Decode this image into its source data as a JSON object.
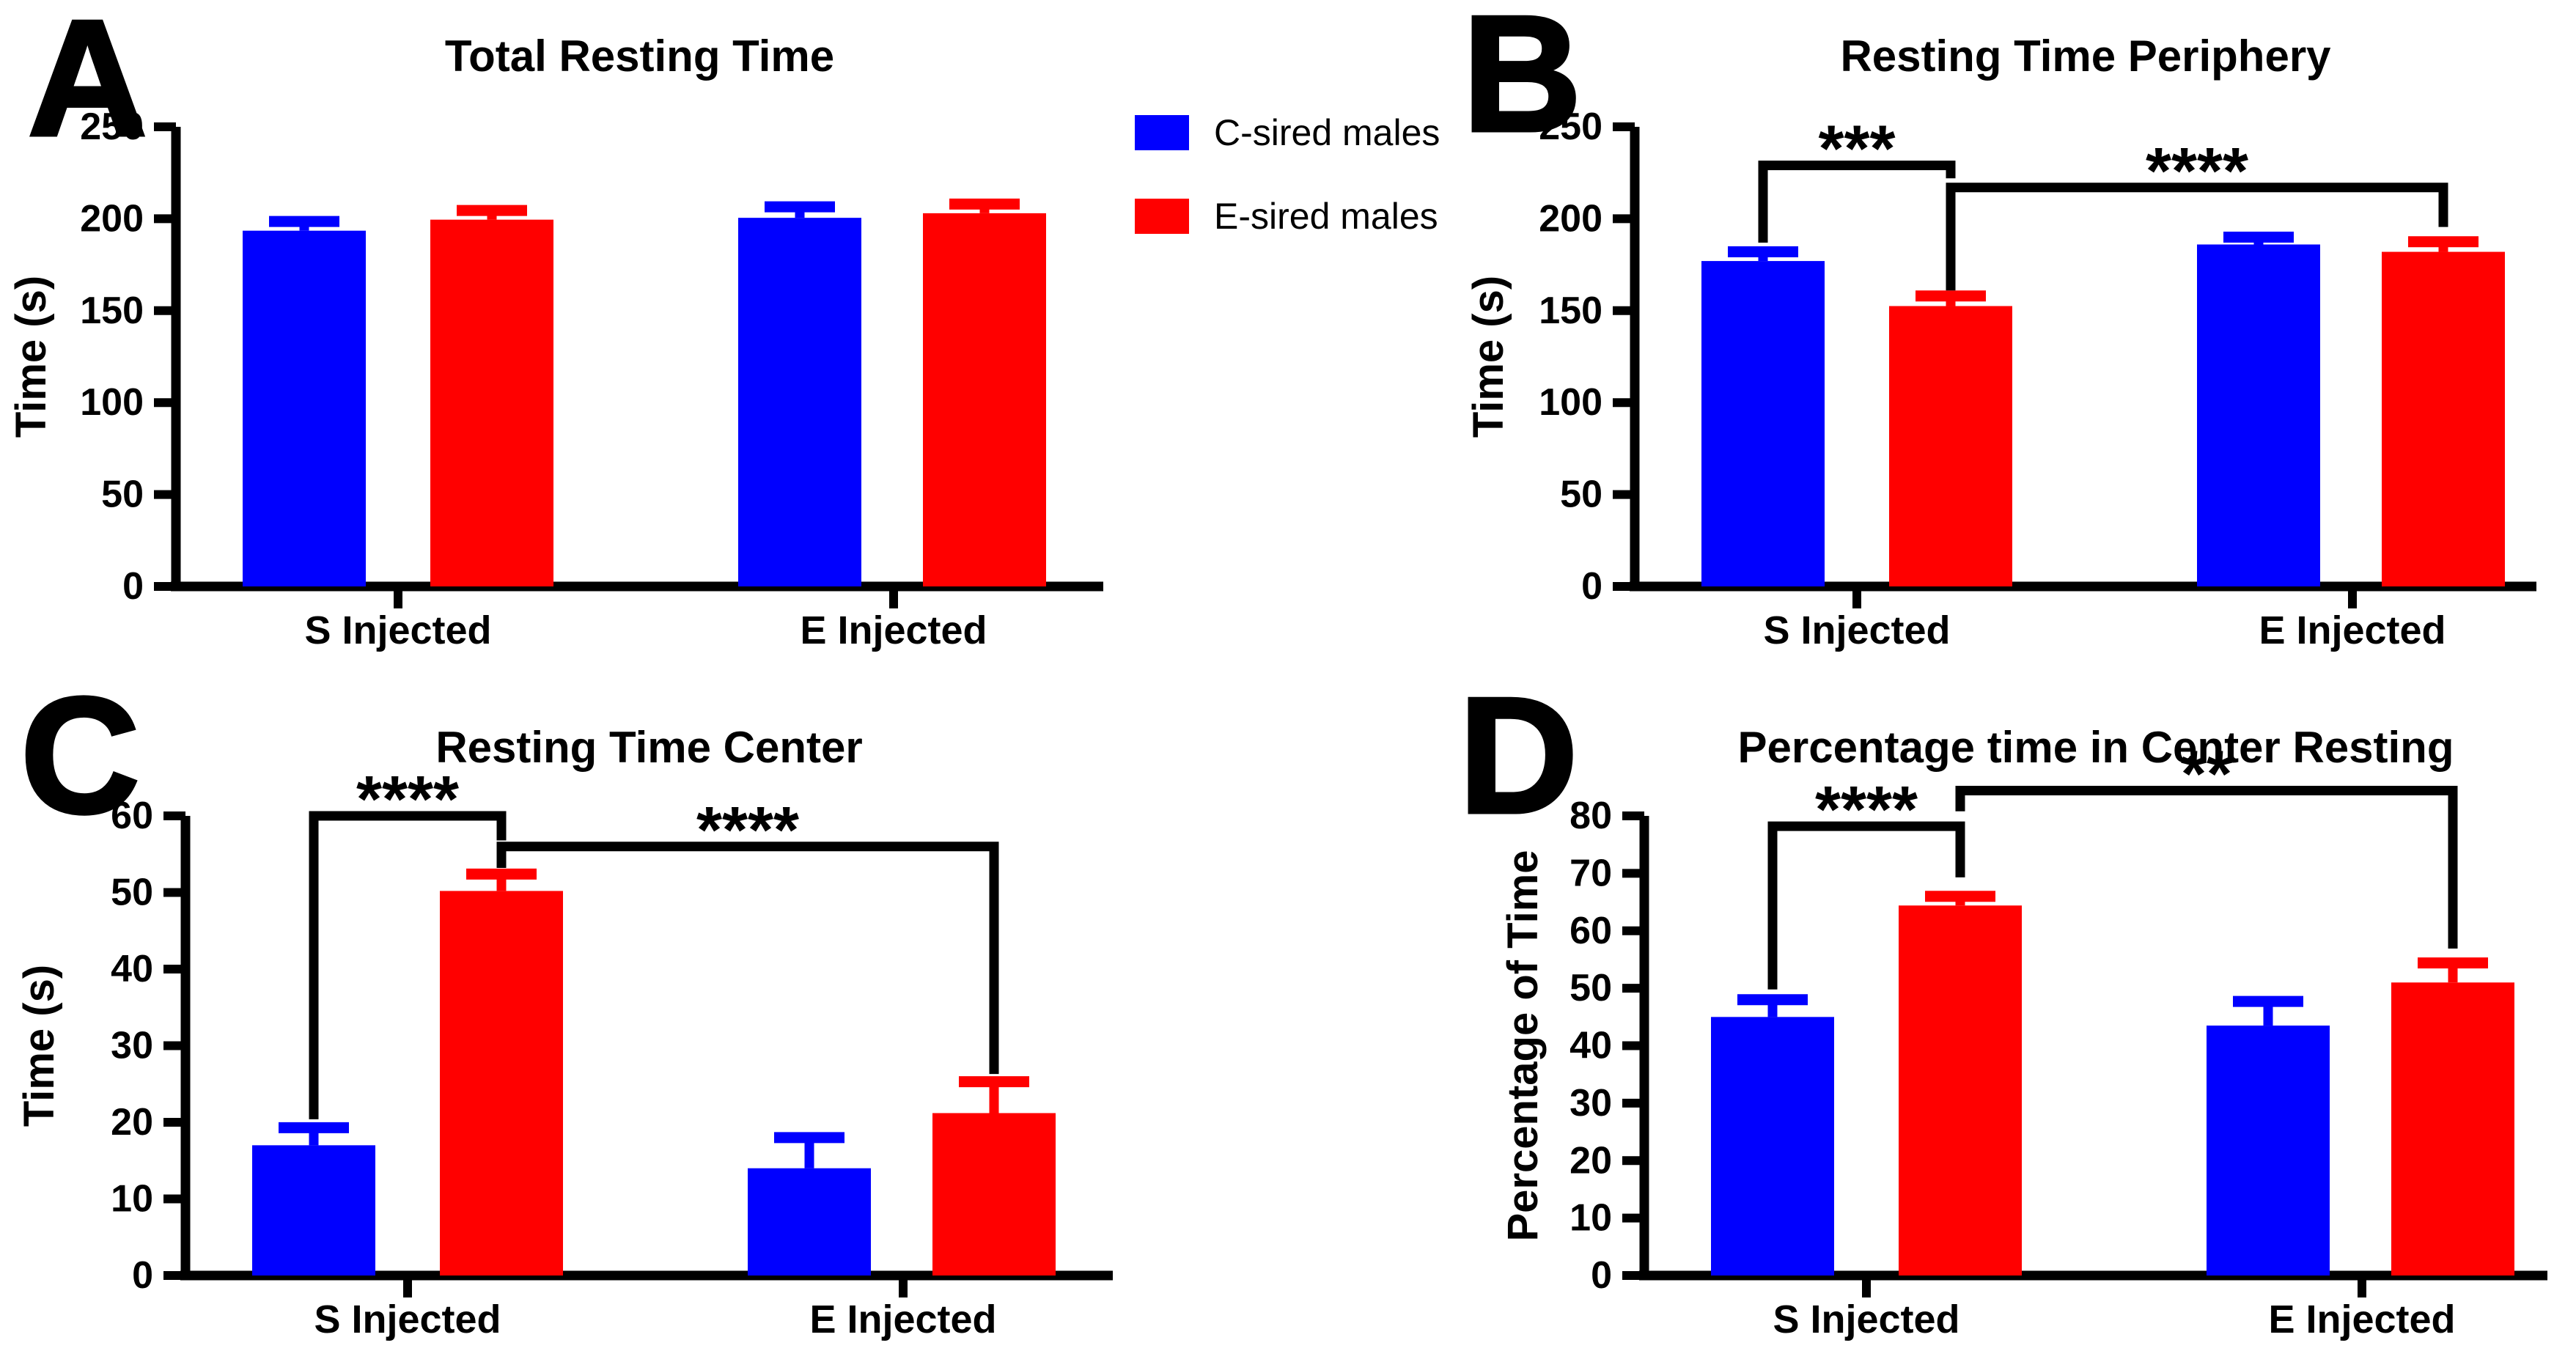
{
  "figure": {
    "background": "#ffffff",
    "colors": {
      "blue": "#0000FF",
      "red": "#FF0000",
      "axis": "#000000"
    },
    "legend": {
      "position": "top-center",
      "items": [
        {
          "label": "C-sired males",
          "color": "blue"
        },
        {
          "label": "E-sired males",
          "color": "red"
        }
      ]
    }
  },
  "chart_data": [
    {
      "panel": "A",
      "type": "bar",
      "title": "Total Resting Time",
      "ylabel": "Time (s)",
      "xlabel": "",
      "ylim": [
        0,
        250
      ],
      "yticks": [
        0,
        50,
        100,
        150,
        200,
        250
      ],
      "grid": false,
      "categories": [
        "S Injected",
        "E Injected"
      ],
      "series": [
        {
          "name": "C-sired males",
          "color": "blue",
          "values": [
            193.5,
            200.5
          ],
          "errors_plus": [
            5,
            6
          ]
        },
        {
          "name": "E-sired males",
          "color": "red",
          "values": [
            199.5,
            203
          ],
          "errors_plus": [
            5,
            5
          ]
        }
      ],
      "significance_brackets": []
    },
    {
      "panel": "B",
      "type": "bar",
      "title": "Resting Time Periphery",
      "ylabel": "Time (s)",
      "xlabel": "",
      "ylim": [
        0,
        250
      ],
      "yticks": [
        0,
        50,
        100,
        150,
        200,
        250
      ],
      "grid": false,
      "categories": [
        "S Injected",
        "E Injected"
      ],
      "series": [
        {
          "name": "C-sired males",
          "color": "blue",
          "values": [
            177,
            186
          ],
          "errors_plus": [
            5,
            4
          ]
        },
        {
          "name": "E-sired males",
          "color": "red",
          "values": [
            152.5,
            182
          ],
          "errors_plus": [
            5.5,
            5.5
          ]
        }
      ],
      "significance_brackets": [
        {
          "label": "***",
          "from": {
            "category": "S Injected",
            "series": "C-sired males"
          },
          "to": {
            "category": "S Injected",
            "series": "E-sired males"
          },
          "level": 229,
          "from_drop": 187,
          "to_drop": 222
        },
        {
          "label": "****",
          "from": {
            "category": "S Injected",
            "series": "E-sired males"
          },
          "to": {
            "category": "E Injected",
            "series": "E-sired males"
          },
          "level": 217,
          "from_drop": 161,
          "to_drop": 195.5
        }
      ]
    },
    {
      "panel": "C",
      "type": "bar",
      "title": "Resting Time Center",
      "ylabel": "Time (s)",
      "xlabel": "",
      "ylim": [
        0,
        60
      ],
      "yticks": [
        0,
        10,
        20,
        30,
        40,
        50,
        60
      ],
      "grid": false,
      "categories": [
        "S Injected",
        "E Injected"
      ],
      "series": [
        {
          "name": "C-sired males",
          "color": "blue",
          "values": [
            17,
            14
          ],
          "errors_plus": [
            2.3,
            4
          ]
        },
        {
          "name": "E-sired males",
          "color": "red",
          "values": [
            50.2,
            21.2
          ],
          "errors_plus": [
            2.2,
            4.1
          ]
        }
      ],
      "significance_brackets": [
        {
          "label": "****",
          "from": {
            "category": "S Injected",
            "series": "C-sired males"
          },
          "to": {
            "category": "S Injected",
            "series": "E-sired males"
          },
          "level": 60,
          "from_drop": 20.4,
          "to_drop": 56.8
        },
        {
          "label": "****",
          "from": {
            "category": "S Injected",
            "series": "E-sired males"
          },
          "to": {
            "category": "E Injected",
            "series": "E-sired males"
          },
          "level": 56,
          "from_drop": 53.2,
          "to_drop": 26.3
        }
      ]
    },
    {
      "panel": "D",
      "type": "bar",
      "title": "Percentage time in Center Resting",
      "ylabel": "Percentage of Time",
      "xlabel": "",
      "ylim": [
        0,
        80
      ],
      "yticks": [
        0,
        10,
        20,
        30,
        40,
        50,
        60,
        70,
        80
      ],
      "grid": false,
      "categories": [
        "S Injected",
        "E Injected"
      ],
      "series": [
        {
          "name": "C-sired males",
          "color": "blue",
          "values": [
            45,
            43.5
          ],
          "errors_plus": [
            3,
            4.2
          ]
        },
        {
          "name": "E-sired males",
          "color": "red",
          "values": [
            64.4,
            51
          ],
          "errors_plus": [
            1.6,
            3.4
          ]
        }
      ],
      "significance_brackets": [
        {
          "label": "****",
          "from": {
            "category": "S Injected",
            "series": "C-sired males"
          },
          "to": {
            "category": "S Injected",
            "series": "E-sired males"
          },
          "level": 78.2,
          "from_drop": 49.8,
          "to_drop": 69.3
        },
        {
          "label": "**",
          "from": {
            "category": "S Injected",
            "series": "E-sired males"
          },
          "to": {
            "category": "E Injected",
            "series": "E-sired males"
          },
          "level": 84.4,
          "from_drop": 80.8,
          "to_drop": 56.9
        }
      ]
    }
  ]
}
